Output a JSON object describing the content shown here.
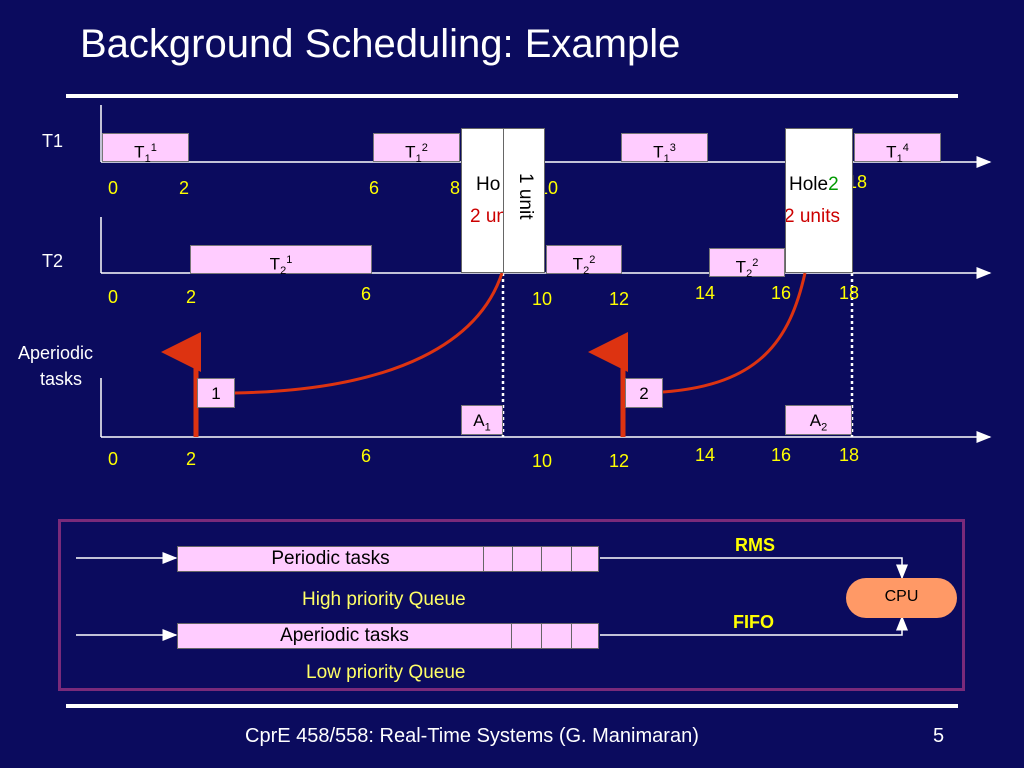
{
  "title": "Background Scheduling: Example",
  "footer": {
    "course": "CprE 458/558: Real-Time Systems (G. Manimaran)",
    "page": "5"
  },
  "rows": {
    "t1": {
      "label": "T1",
      "ticks": [
        "0",
        "2",
        "6",
        "8",
        "10",
        "18"
      ]
    },
    "t2": {
      "label": "T2",
      "ticks": [
        "0",
        "2",
        "6",
        "10",
        "12",
        "14",
        "16",
        "18"
      ]
    },
    "aperiodic": {
      "label_line1": "Aperiodic",
      "label_line2": "tasks",
      "ticks": [
        "0",
        "2",
        "6",
        "10",
        "12",
        "14",
        "16",
        "18"
      ]
    }
  },
  "tasks": {
    "t1_1": {
      "base": "T",
      "sub": "1",
      "sup": "1"
    },
    "t1_2": {
      "base": "T",
      "sub": "1",
      "sup": "2"
    },
    "t1_3": {
      "base": "T",
      "sub": "1",
      "sup": "3"
    },
    "t1_4": {
      "base": "T",
      "sub": "1",
      "sup": "4"
    },
    "t2_1": {
      "base": "T",
      "sub": "2",
      "sup": "1"
    },
    "t2_2a": {
      "base": "T",
      "sub": "2",
      "sup": "2"
    },
    "t2_2b": {
      "base": "T",
      "sub": "2",
      "sup": "2"
    },
    "a1": {
      "base": "A",
      "sub": "1"
    },
    "a2": {
      "base": "A",
      "sub": "2"
    }
  },
  "holes": {
    "hole1": {
      "text": "Ho",
      "units": "2 un",
      "rotated": "1 unit"
    },
    "hole2": {
      "text": "Hole",
      "num": "2",
      "units": "2 units"
    }
  },
  "aperiodic_arrivals": {
    "a1": "1",
    "a2": "2"
  },
  "queues": {
    "periodic": {
      "label": "Periodic tasks",
      "caption": "High priority Queue",
      "policy": "RMS"
    },
    "aperiodic": {
      "label": "Aperiodic tasks",
      "caption": "Low priority Queue",
      "policy": "FIFO"
    },
    "cpu": "CPU"
  },
  "colors": {
    "background": "#0b0b5e",
    "task_box": "#ffccff",
    "numbers": "#ffff00",
    "arrow": "#dd3311",
    "queue_border": "#7a2a7a",
    "cpu": "#ff9966"
  }
}
